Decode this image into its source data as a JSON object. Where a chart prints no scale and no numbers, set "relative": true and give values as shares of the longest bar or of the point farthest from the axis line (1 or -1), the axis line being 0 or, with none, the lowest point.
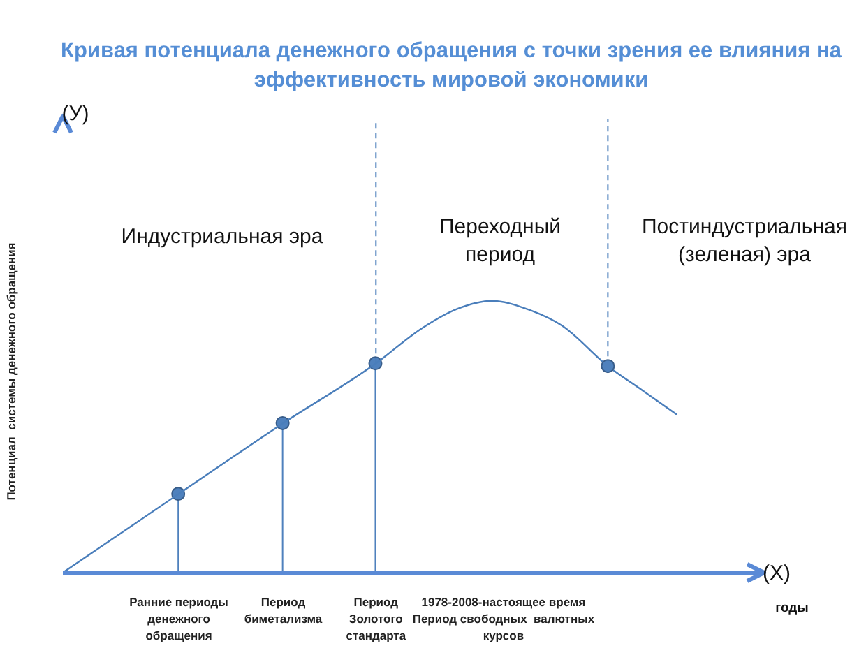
{
  "chart_data": {
    "type": "line",
    "title": "Кривая потенциала  денежного обращения с точки зрения ее влияния на эффективность мировой экономики",
    "ylabel": "Потенциал  системы денежного обращения",
    "relative": true,
    "categories": [
      null,
      null,
      null,
      null,
      null,
      null,
      null,
      null,
      null,
      null,
      "Ранние периоды денежного обращения",
      null,
      null,
      null,
      null,
      null,
      null,
      null,
      null,
      "Период биметализма",
      null,
      null,
      null,
      null,
      null,
      null,
      null,
      "Период Золотого стандарта",
      null,
      null,
      null,
      null,
      null,
      null,
      null,
      null,
      null,
      null,
      "1978-2008-настоящее время Период свободных  валютных курсов",
      null,
      null,
      null,
      null,
      null,
      null,
      null,
      null,
      null,
      null,
      null,
      null,
      null,
      null,
      null
    ],
    "series": [
      {
        "color": "#4a7ebb",
        "marker": "none",
        "values": [
          0,
          null,
          null,
          null,
          null,
          null,
          null,
          null,
          null,
          null,
          0.29,
          null,
          null,
          null,
          null,
          null,
          null,
          null,
          null,
          0.55,
          null,
          null,
          null,
          null,
          null,
          null,
          null,
          0.77,
          null,
          null,
          null,
          0.9,
          null,
          null,
          0.97,
          null,
          null,
          1,
          null,
          null,
          0.97,
          null,
          null,
          0.91,
          null,
          null,
          null,
          0.76,
          null,
          null,
          0.67,
          null,
          null,
          0.58
        ]
      },
      {
        "type": "lollipop",
        "color": "#4f81bd",
        "marker": "circle",
        "values": [
          null,
          null,
          null,
          null,
          null,
          null,
          null,
          null,
          null,
          null,
          0.29,
          null,
          null,
          null,
          null,
          null,
          null,
          null,
          null,
          0.55,
          null,
          null,
          null,
          null,
          null,
          null,
          null,
          0.77,
          null,
          null,
          null,
          null,
          null,
          null,
          null,
          null,
          null,
          null,
          null,
          null,
          null,
          null,
          null,
          null,
          null,
          null,
          null,
          null,
          null,
          null,
          null,
          null,
          null,
          null
        ]
      },
      {
        "type": "scatter",
        "color": "#4f81bd",
        "marker": "circle",
        "values": [
          null,
          null,
          null,
          null,
          null,
          null,
          null,
          null,
          null,
          null,
          null,
          null,
          null,
          null,
          null,
          null,
          null,
          null,
          null,
          null,
          null,
          null,
          null,
          null,
          null,
          null,
          null,
          null,
          null,
          null,
          null,
          null,
          null,
          null,
          null,
          null,
          null,
          null,
          null,
          null,
          null,
          null,
          null,
          null,
          null,
          null,
          null,
          0.76,
          null,
          null,
          null,
          null,
          null,
          null
        ]
      }
    ],
    "ref_lines": [
      {
        "axis": "x",
        "value": "Период Золотого стандарта",
        "color": "#4a7ebb",
        "line_style": "dashed"
      }
    ],
    "annotations": [
      "Индустриальная эра",
      "Переходный период",
      "Постиндустриальная (зеленая) эра",
      "(У)",
      "(X)",
      "годы"
    ]
  }
}
